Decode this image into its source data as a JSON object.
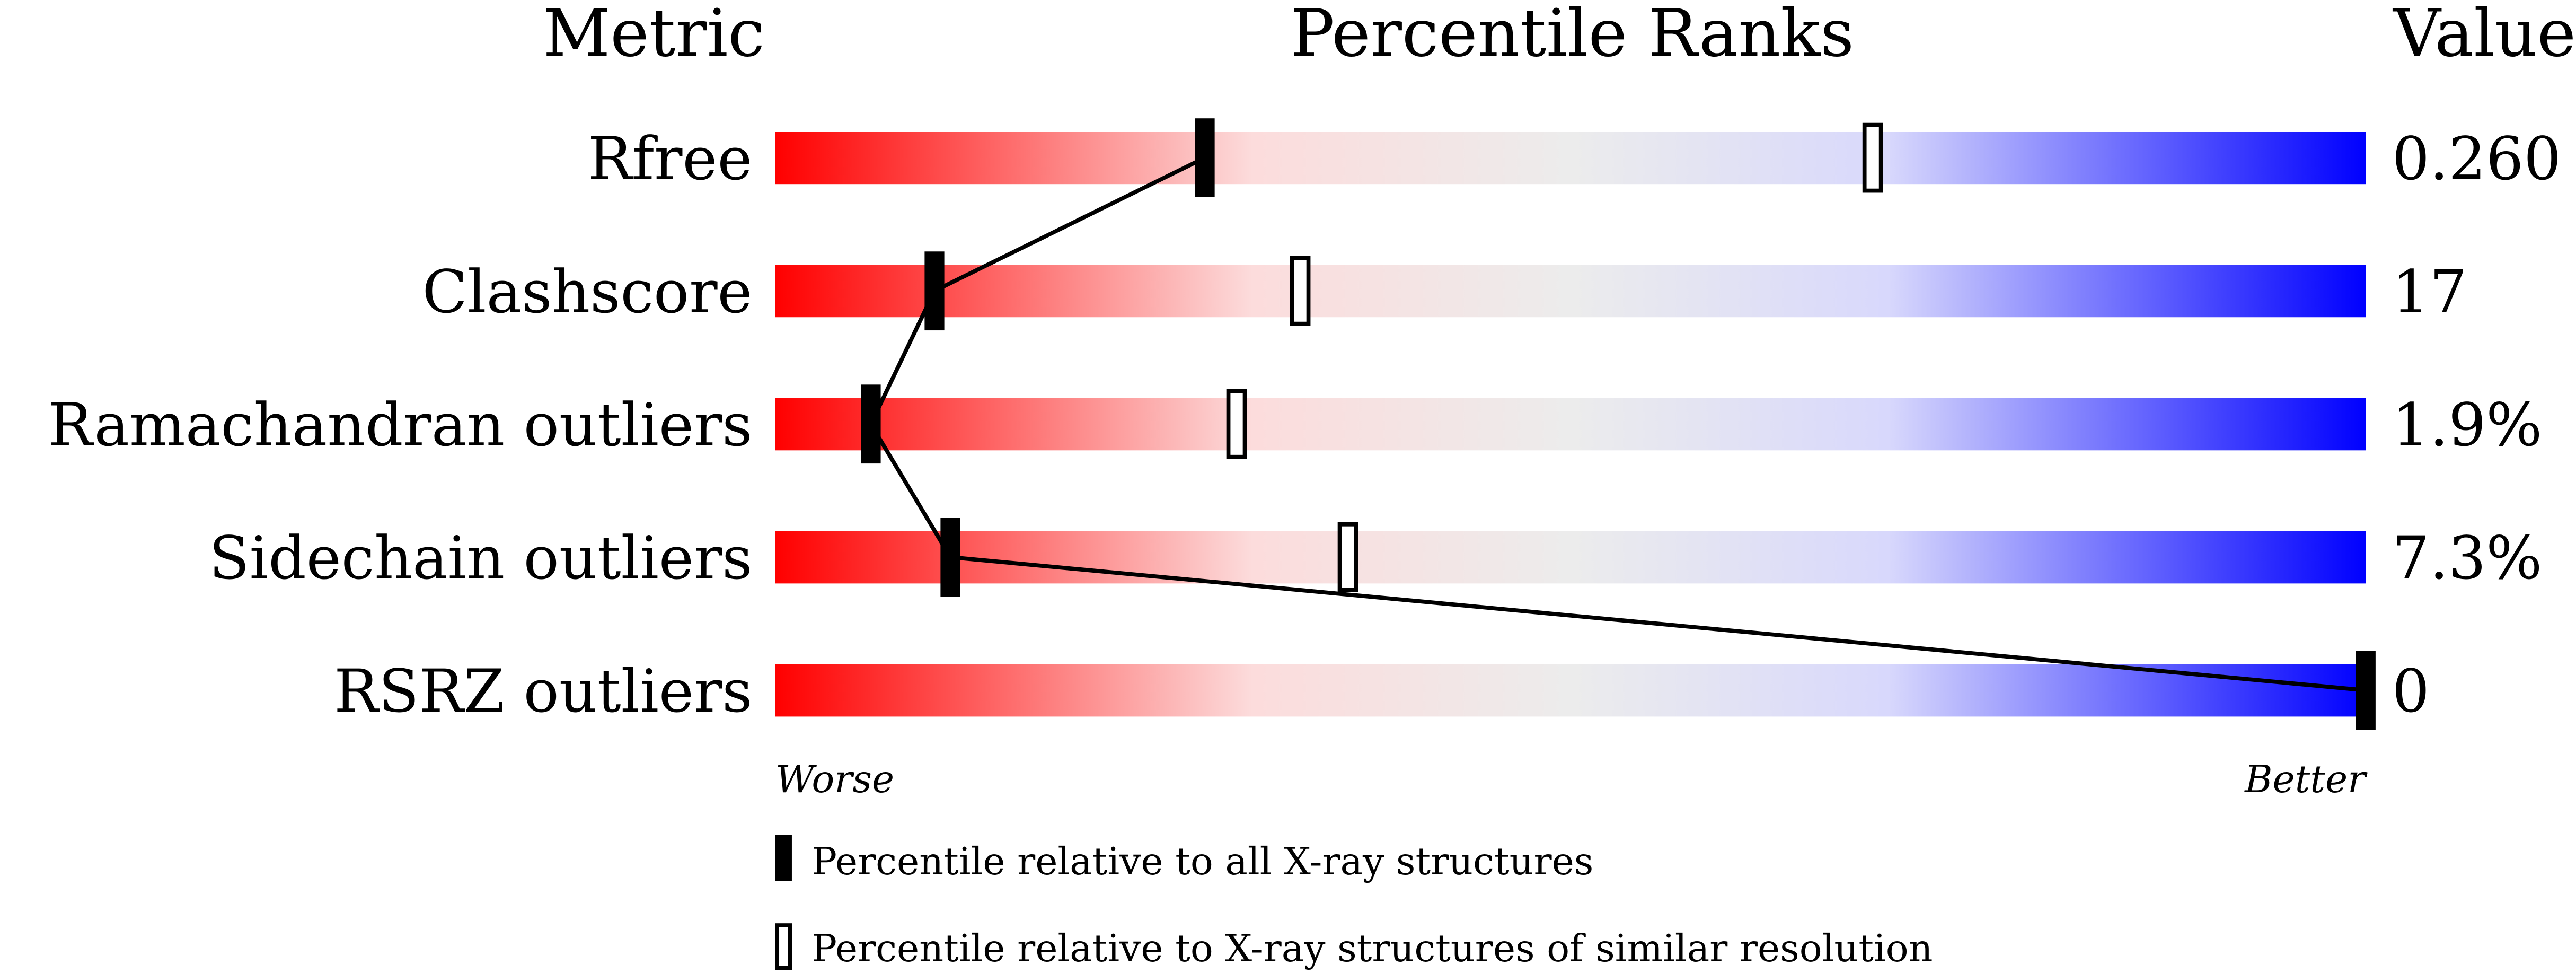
{
  "chart_data": {
    "type": "percentile-slider",
    "headers": {
      "metric": "Metric",
      "ranks": "Percentile Ranks",
      "value": "Value"
    },
    "axis": {
      "worse": "Worse",
      "better": "Better",
      "range": [
        0,
        100
      ]
    },
    "metrics": [
      {
        "name": "Rfree",
        "value": "0.260",
        "percentile_all": 27,
        "percentile_similar": 69
      },
      {
        "name": "Clashscore",
        "value": "17",
        "percentile_all": 10,
        "percentile_similar": 33
      },
      {
        "name": "Ramachandran outliers",
        "value": "1.9%",
        "percentile_all": 6,
        "percentile_similar": 29
      },
      {
        "name": "Sidechain outliers",
        "value": "7.3%",
        "percentile_all": 11,
        "percentile_similar": 36
      },
      {
        "name": "RSRZ outliers",
        "value": "0",
        "percentile_all": 100,
        "percentile_similar": null
      }
    ],
    "legend": {
      "all": "Percentile relative to all X-ray structures",
      "similar": "Percentile relative to X-ray structures of similar resolution"
    },
    "colors": {
      "worse": "#ff0000",
      "middle": "#eeeeee",
      "better": "#0000ff"
    }
  }
}
